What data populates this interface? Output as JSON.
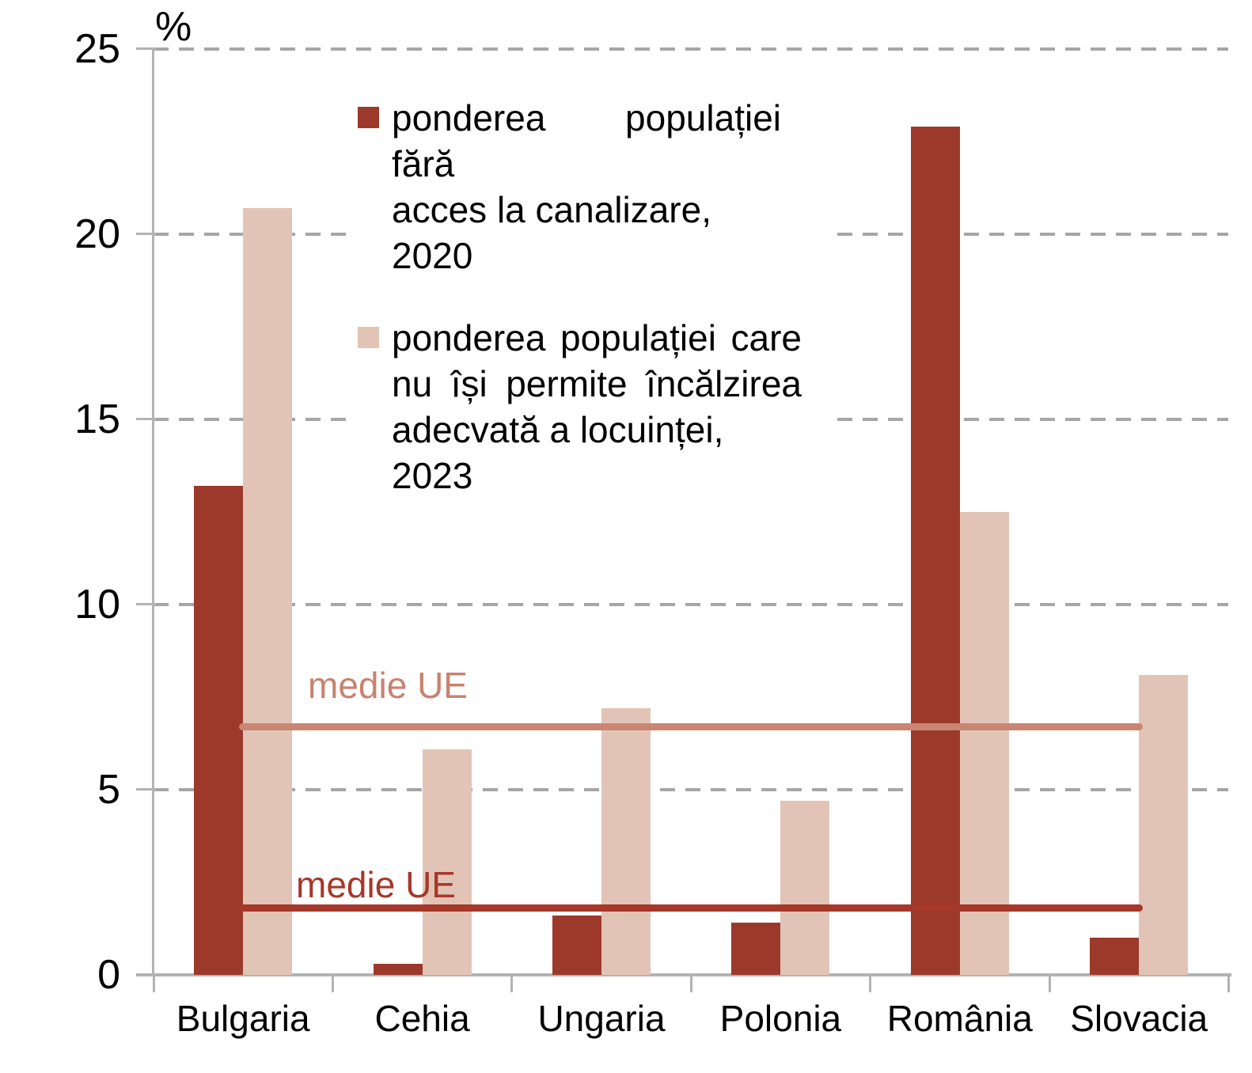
{
  "chart_data": {
    "type": "bar",
    "categories": [
      "Bulgaria",
      "Cehia",
      "Ungaria",
      "Polonia",
      "România",
      "Slovacia"
    ],
    "series": [
      {
        "name": "ponderea populației fără acces la canalizare, 2020",
        "key": "canalizare-2020",
        "color": "#9C392B",
        "values": [
          13.2,
          0.3,
          1.6,
          1.4,
          22.9,
          1.0
        ]
      },
      {
        "name": "ponderea populației care nu își permite încălzirea adecvată a locuinței, 2023",
        "key": "incalzire-2023",
        "color": "#E2C4B6",
        "values": [
          20.7,
          6.1,
          7.2,
          4.7,
          12.5,
          8.1
        ]
      }
    ],
    "reference_lines": [
      {
        "label": "medie UE",
        "value": 6.7,
        "applies_to": "incalzire-2023",
        "color": "#CA8673",
        "text_color": "#C9826F"
      },
      {
        "label": "medie UE",
        "value": 1.8,
        "applies_to": "canalizare-2020",
        "color": "#A5382A",
        "text_color": "#A5382A"
      }
    ],
    "ylabel": "%",
    "ylim": [
      0,
      25
    ],
    "yticks": [
      "25",
      "20",
      "15",
      "10",
      "5",
      "0"
    ],
    "grid": "dashed horizontal gridlines at every 5",
    "legend_position": "top-center-left"
  },
  "legend": {
    "items": [
      {
        "lines": [
          "ponderea populației fără",
          "acces la canalizare, 2020"
        ]
      },
      {
        "lines": [
          "ponderea populației care",
          "nu își permite încălzirea",
          "adecvată a locuinței, 2023"
        ]
      }
    ]
  }
}
